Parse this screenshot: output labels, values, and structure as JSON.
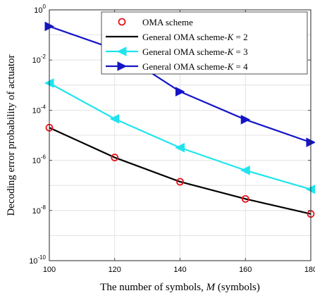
{
  "chart_data": {
    "type": "line",
    "xlabel": "The number of symbols, M (symbols)",
    "xlabel_parts": [
      "The number of symbols, ",
      "M",
      " (symbols)"
    ],
    "ylabel": "Decoding error probability of actuator",
    "xlim": [
      100,
      180
    ],
    "ylim_log10": [
      -10,
      0
    ],
    "yscale": "log",
    "grid": true,
    "legend_position": "top-right",
    "x": [
      100,
      120,
      140,
      160,
      180
    ],
    "x_ticks": [
      "100",
      "120",
      "140",
      "160",
      "180"
    ],
    "y_ticks": [
      {
        "base": "10",
        "exp": "0"
      },
      {
        "base": "10",
        "exp": "-2"
      },
      {
        "base": "10",
        "exp": "-4"
      },
      {
        "base": "10",
        "exp": "-6"
      },
      {
        "base": "10",
        "exp": "-8"
      },
      {
        "base": "10",
        "exp": "-10"
      }
    ],
    "series": [
      {
        "name": "OMA scheme",
        "values": [
          2e-05,
          1.3e-06,
          1.4e-07,
          2.9e-08,
          7.3e-09
        ],
        "color": "#e8141b",
        "style": "markers",
        "marker": "circle"
      },
      {
        "name": "General OMA scheme-K = 2",
        "name_parts": [
          "General OMA scheme-",
          "K",
          " = 2"
        ],
        "values": [
          2e-05,
          1.3e-06,
          1.4e-07,
          2.9e-08,
          7.3e-09
        ],
        "color": "#000000",
        "style": "line",
        "marker": "none"
      },
      {
        "name": "General OMA scheme-K = 3",
        "name_parts": [
          "General OMA scheme-",
          "K",
          " = 3"
        ],
        "values": [
          0.0012,
          4.5e-05,
          3.2e-06,
          4e-07,
          7e-08
        ],
        "color": "#1fe4ee",
        "style": "line",
        "marker": "triangle-left"
      },
      {
        "name": "General OMA scheme-K = 4",
        "name_parts": [
          "General OMA scheme-",
          "K",
          " = 4"
        ],
        "values": [
          0.22,
          0.027,
          0.00055,
          4.2e-05,
          5.2e-06
        ],
        "color": "#1515c6",
        "style": "line",
        "marker": "triangle-right"
      }
    ]
  }
}
